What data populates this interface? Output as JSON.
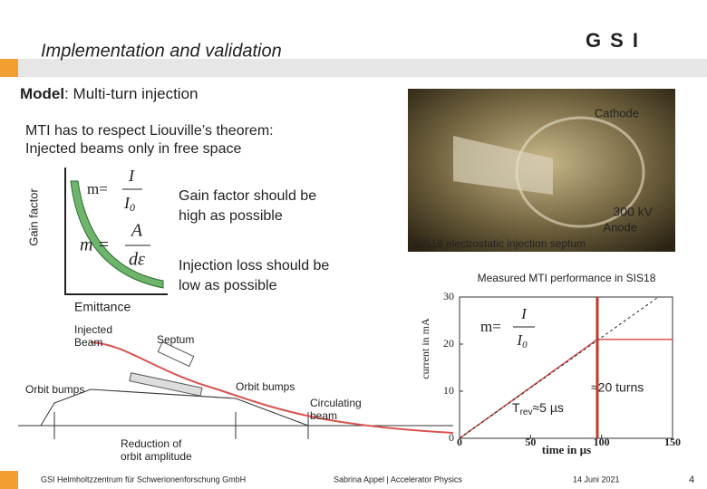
{
  "header": {
    "title": "Implementation and validation",
    "logo": "GSI"
  },
  "model": {
    "label": "Model",
    "text": ": Multi-turn injection"
  },
  "liouville": [
    "MTI has to respect Liouville’s theorem:",
    "Injected beams only in free space"
  ],
  "gain_plot": {
    "y_label": "Gain factor",
    "x_label": "Emittance",
    "formula1": {
      "lhs": "m=",
      "num": "I",
      "den": "I",
      "den_sub": "0"
    },
    "formula2": {
      "lhs": "m =",
      "num": "A",
      "den": "dε"
    }
  },
  "notes": [
    [
      "Gain factor should be",
      "high as possible"
    ],
    [
      "Injection loss should be",
      "low as possible"
    ]
  ],
  "photo": {
    "cathode": "Cathode",
    "voltage": "300 kV",
    "anode": "Anode",
    "caption": "SIS18 electrostatic injection septum"
  },
  "mti_chart": {
    "title": "Measured MTI performance in SIS18",
    "y_label": "current in mA",
    "x_label": "time in µs",
    "xlim": [
      0,
      150
    ],
    "ylim": [
      0,
      30
    ],
    "xticks": [
      0,
      50,
      100,
      150
    ],
    "yticks": [
      0,
      10,
      20,
      30
    ],
    "series": [
      {
        "color": "#d9534f",
        "x": [
          0,
          97,
          150
        ],
        "values": [
          0,
          21,
          21
        ]
      },
      {
        "color": "#222222",
        "x": [
          0,
          140
        ],
        "values": [
          0,
          30
        ]
      }
    ],
    "marker_x": 97,
    "marker_color": "#c0392b",
    "formula": {
      "lhs": "m=",
      "num": "I",
      "den": "I",
      "den_sub": "0"
    },
    "turns": "≈20 turns",
    "trev": {
      "main": "T",
      "sub": "rev",
      "rest": "≈5 µs"
    }
  },
  "diagram": {
    "injected": [
      "Injected",
      "Beam"
    ],
    "septum": "Septum",
    "bumps_left": "Orbit bumps",
    "bumps_right": "Orbit bumps",
    "circulating": [
      "Circulating",
      "beam"
    ],
    "reduction": [
      "Reduction of",
      "orbit amplitude"
    ]
  },
  "footer": {
    "institute": "GSI Helmholtzzentrum für Schwerionenforschung GmbH",
    "author": "Sabrina Appel | Accelerator Physics",
    "date": "14 Juni 2021",
    "page": "4"
  }
}
